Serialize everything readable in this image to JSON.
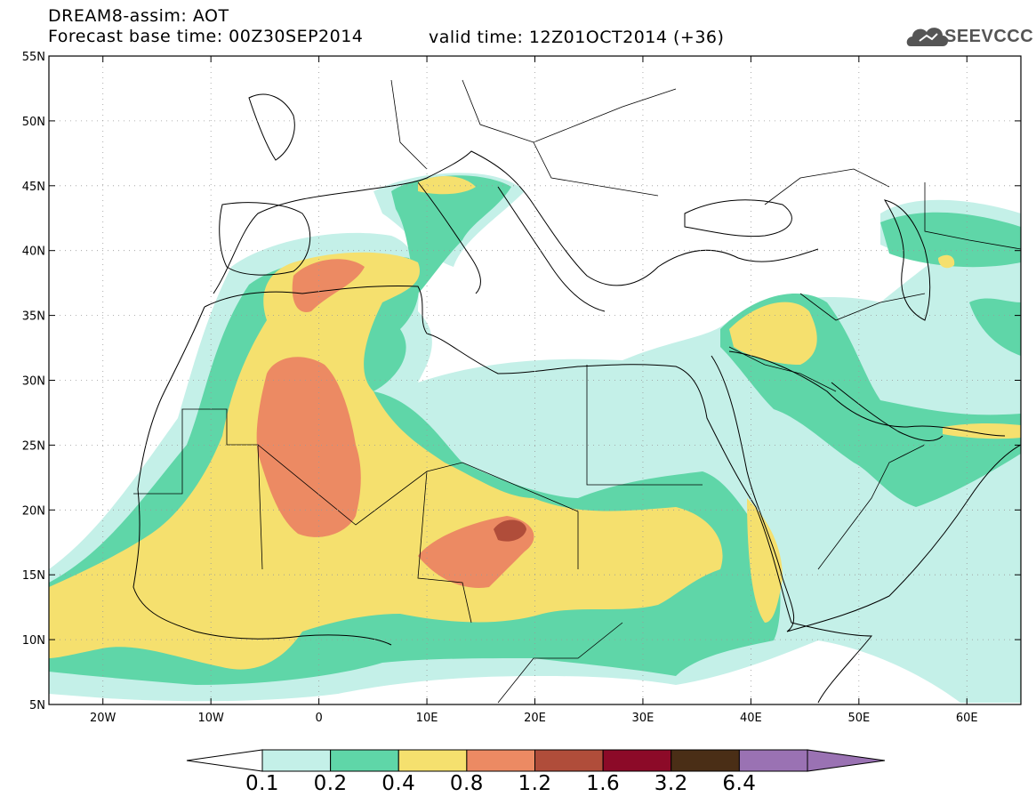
{
  "header": {
    "line1": "DREAM8-assim: AOT",
    "line2": "Forecast base time: 00Z30SEP2014",
    "valid": "valid time: 12Z01OCT2014 (+36)",
    "logo_text": "SEEVCCC"
  },
  "map": {
    "lon_range": [
      -25,
      65
    ],
    "lat_range": [
      5,
      55
    ],
    "x_ticks": [
      "20W",
      "10W",
      "0",
      "10E",
      "20E",
      "30E",
      "40E",
      "50E",
      "60E"
    ],
    "x_tick_values": [
      -20,
      -10,
      0,
      10,
      20,
      30,
      40,
      50,
      60
    ],
    "y_ticks": [
      "5N",
      "10N",
      "15N",
      "20N",
      "25N",
      "30N",
      "35N",
      "40N",
      "45N",
      "50N",
      "55N"
    ],
    "y_tick_values": [
      5,
      10,
      15,
      20,
      25,
      30,
      35,
      40,
      45,
      50,
      55
    ],
    "grid": true
  },
  "colorbar": {
    "labels": [
      "0.1",
      "0.2",
      "0.4",
      "0.8",
      "1.2",
      "1.6",
      "3.2",
      "6.4"
    ],
    "colors": [
      "#ffffff",
      "#c4f0e8",
      "#5fd6a8",
      "#f5e06e",
      "#ec8a63",
      "#b04d3a",
      "#8c0a28",
      "#4a2e16",
      "#9a72b3"
    ]
  }
}
